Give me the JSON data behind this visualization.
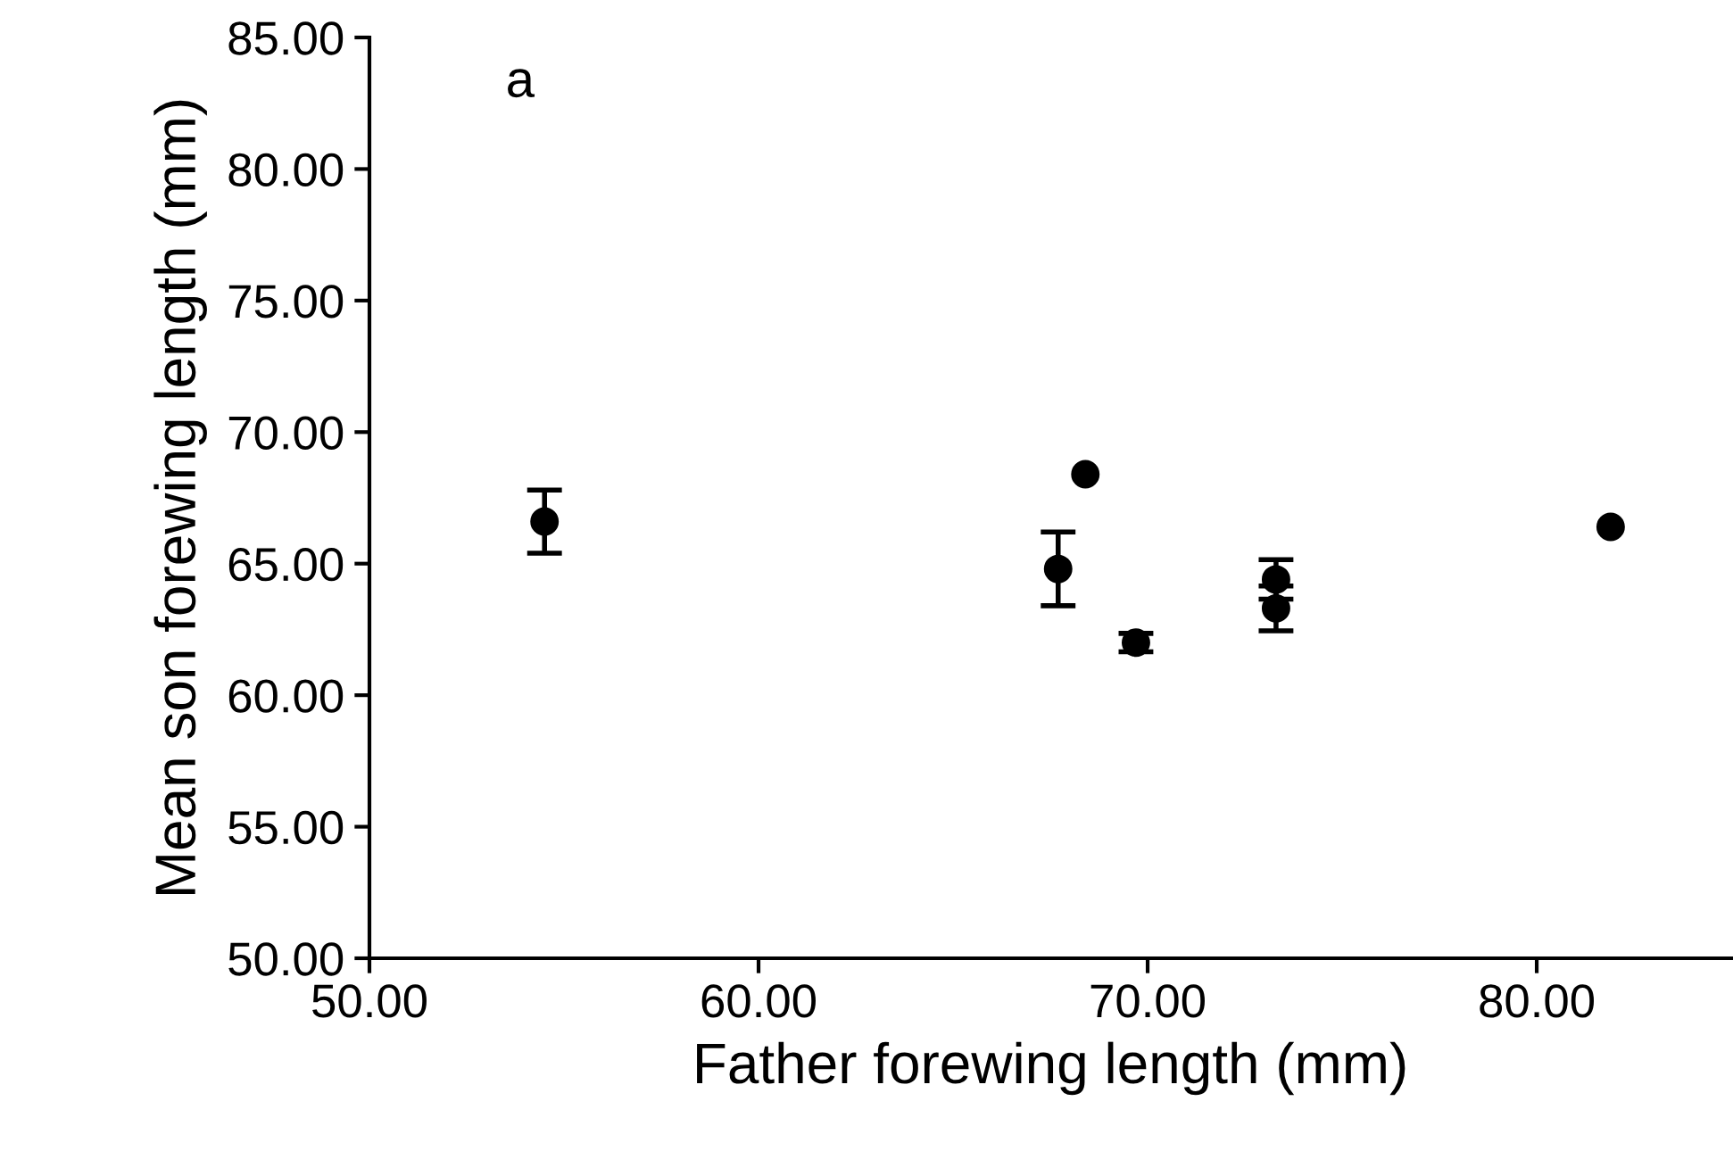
{
  "chart_data": {
    "type": "scatter",
    "xlabel": "Father forewing length (mm)",
    "ylabel": "Mean son forewing length (mm)",
    "annotations": [
      "a"
    ],
    "x": [
      54.5,
      67.7,
      68.4,
      69.7,
      73.3,
      73.3,
      81.9
    ],
    "series": [
      {
        "color": "#000000",
        "values": [
          66.6,
          64.8,
          68.4,
          62.0,
          64.4,
          63.3,
          66.4
        ],
        "errors": [
          1.2,
          1.4,
          null,
          0.35,
          0.75,
          0.85,
          null
        ]
      }
    ],
    "marker": "circle",
    "xlim": [
      50,
      85
    ],
    "ylim": [
      50,
      85
    ],
    "xticks": [
      {
        "value": 50,
        "label": "50.00"
      },
      {
        "value": 60,
        "label": "60.00"
      },
      {
        "value": 70,
        "label": "70.00"
      },
      {
        "value": 80,
        "label": "80.00"
      }
    ],
    "yticks": [
      {
        "value": 50,
        "label": "50.00"
      },
      {
        "value": 55,
        "label": "55.00"
      },
      {
        "value": 60,
        "label": "60.00"
      },
      {
        "value": 65,
        "label": "65.00"
      },
      {
        "value": 70,
        "label": "70.00"
      },
      {
        "value": 75,
        "label": "75.00"
      },
      {
        "value": 80,
        "label": "80.00"
      },
      {
        "value": 85,
        "label": "85.00"
      }
    ],
    "grid": false,
    "legend": false
  }
}
